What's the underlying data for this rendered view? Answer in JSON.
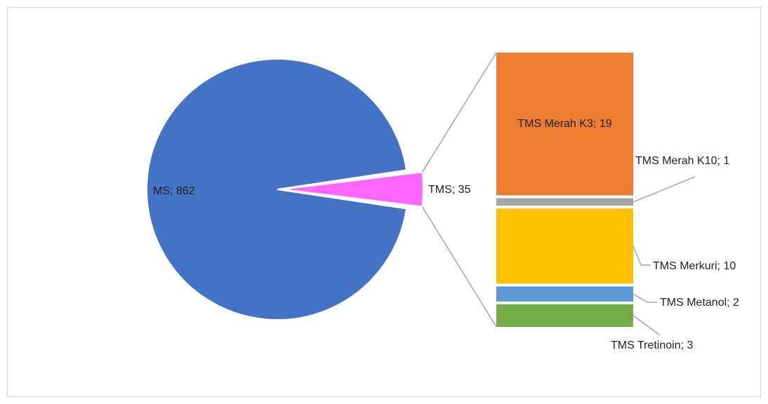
{
  "chart_data": {
    "type": "pie",
    "categories": [
      "MS",
      "TMS"
    ],
    "values": [
      862,
      35
    ],
    "value_labels": [
      "MS; 862",
      "TMS; 35"
    ],
    "colors": [
      "#4472c4",
      "#ff66ff"
    ],
    "breakdown": {
      "categories": [
        "TMS Merah K3",
        "TMS Merah K10",
        "TMS Merkuri",
        "TMS Metanol",
        "TMS Tretinoin"
      ],
      "values": [
        19,
        1,
        10,
        2,
        3
      ],
      "value_labels": [
        "TMS Merah K3; 19",
        "TMS Merah K10; 1",
        "TMS Merkuri; 10",
        "TMS Metanol; 2",
        "TMS Tretinoin; 3"
      ],
      "colors": [
        "#ed7d31",
        "#a5a5a5",
        "#ffc000",
        "#5b9bd5",
        "#70ad47"
      ]
    }
  }
}
